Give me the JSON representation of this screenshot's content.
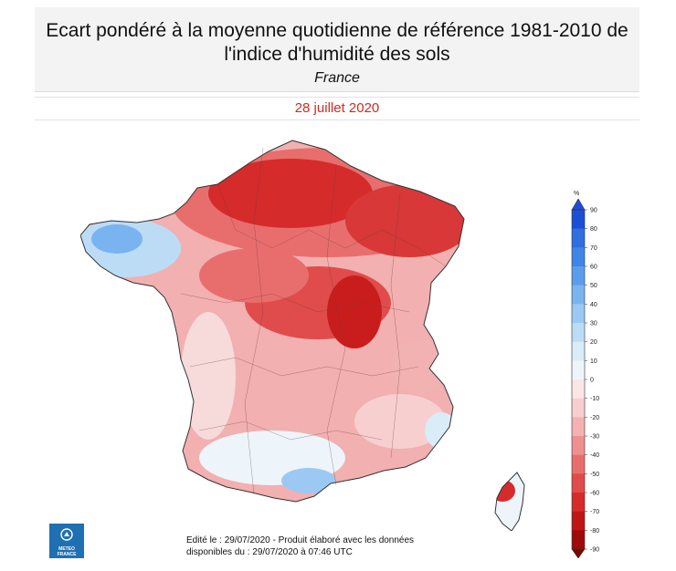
{
  "header": {
    "title": "Ecart pondéré à la moyenne quotidienne de référence 1981-2010 de l'indice d'humidité des sols",
    "region": "France",
    "date": "28 juillet 2020"
  },
  "legend": {
    "unit": "%",
    "ticks": [
      "90",
      "80",
      "70",
      "60",
      "50",
      "40",
      "30",
      "20",
      "10",
      "0",
      "-10",
      "-20",
      "-30",
      "-40",
      "-50",
      "-60",
      "-70",
      "-80",
      "-90"
    ],
    "colors": [
      "#1b4fd6",
      "#2f6fe0",
      "#3f86e6",
      "#5a9dec",
      "#79b4f0",
      "#9bc9f3",
      "#bcdcf6",
      "#d9ecf8",
      "#edf5fb",
      "#fbe6e6",
      "#f7cfcf",
      "#f3b2b2",
      "#ee9090",
      "#e86e6e",
      "#e04c4c",
      "#d62b2b",
      "#bf1515",
      "#9e0a0a"
    ]
  },
  "logo": {
    "line1": "METEO",
    "line2": "FRANCE"
  },
  "footer": {
    "line1": "Edité le : 29/07/2020 - Produit élaboré avec les données",
    "line2": "disponibles du : 29/07/2020 à 07:46 UTC"
  }
}
